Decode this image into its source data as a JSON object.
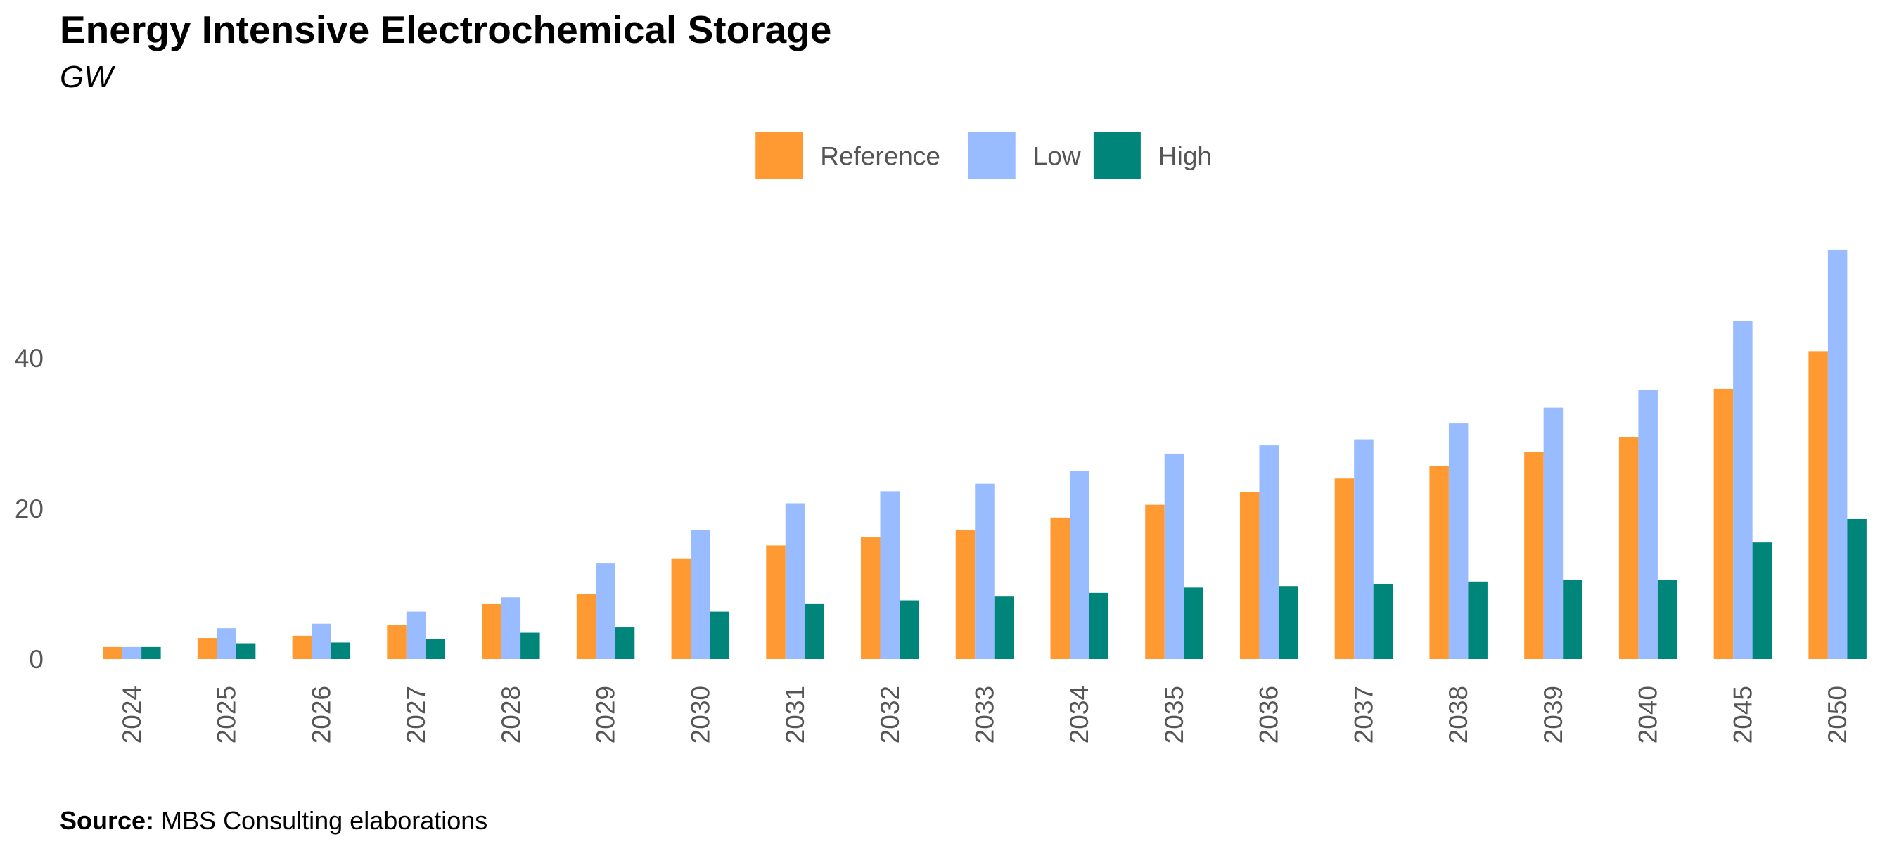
{
  "chart_data": {
    "type": "bar",
    "title": "Energy Intensive Electrochemical Storage",
    "subtitle": "GW",
    "xlabel": "",
    "ylabel": "",
    "categories": [
      "2024",
      "2025",
      "2026",
      "2027",
      "2028",
      "2029",
      "2030",
      "2031",
      "2032",
      "2033",
      "2034",
      "2035",
      "2036",
      "2037",
      "2038",
      "2039",
      "2040",
      "2045",
      "2050"
    ],
    "series": [
      {
        "name": "Reference",
        "color": "#FF9A33",
        "values": [
          1.6,
          2.8,
          3.1,
          4.5,
          7.3,
          8.6,
          13.3,
          15.1,
          16.2,
          17.2,
          18.8,
          20.5,
          22.2,
          24.0,
          25.7,
          27.5,
          29.5,
          35.9,
          40.9
        ]
      },
      {
        "name": "Low",
        "color": "#99BBFF",
        "values": [
          1.6,
          4.1,
          4.7,
          6.3,
          8.2,
          12.7,
          17.2,
          20.7,
          22.3,
          23.3,
          25.0,
          27.3,
          28.4,
          29.2,
          31.3,
          33.4,
          35.7,
          44.9,
          54.4
        ]
      },
      {
        "name": "High",
        "color": "#00857A",
        "values": [
          1.6,
          2.1,
          2.2,
          2.7,
          3.5,
          4.2,
          6.3,
          7.3,
          7.8,
          8.3,
          8.8,
          9.5,
          9.7,
          10.0,
          10.3,
          10.5,
          10.5,
          15.5,
          18.6
        ]
      }
    ],
    "yticks": [
      0,
      20,
      40
    ],
    "ylim": [
      0,
      58
    ],
    "grid": false,
    "legend_position": "top-center"
  },
  "source": {
    "label": "Source:",
    "text": " MBS Consulting elaborations"
  }
}
